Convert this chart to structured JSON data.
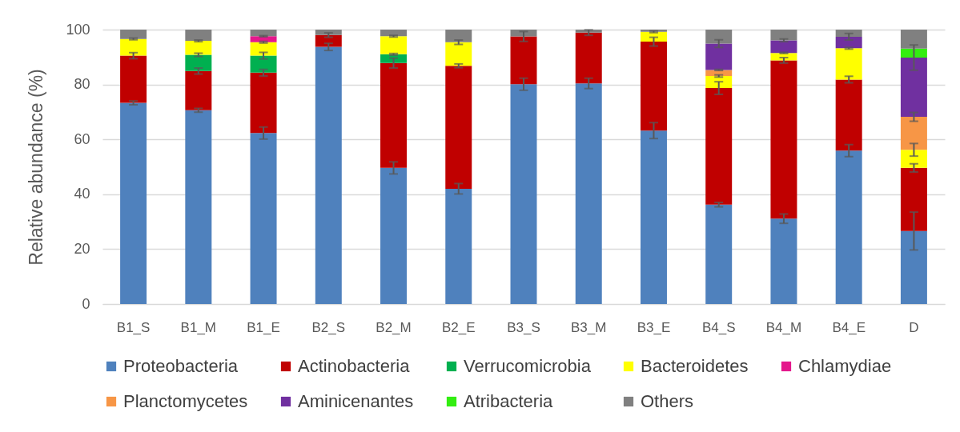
{
  "chart_data": {
    "type": "bar",
    "stacked": true,
    "ylabel": "Relative abundance (%)",
    "categories": [
      "B1_S",
      "B1_M",
      "B1_E",
      "B2_S",
      "B2_M",
      "B2_E",
      "B3_S",
      "B3_M",
      "B3_E",
      "B4_S",
      "B4_M",
      "B4_E",
      "D"
    ],
    "ylim": [
      0,
      100
    ],
    "yticks": [
      0,
      20,
      40,
      60,
      80,
      100
    ],
    "grid": "y",
    "legend": "bottom",
    "series": [
      {
        "name": "Proteobacteria",
        "color": "#4f81bd",
        "values": [
          73.3,
          70.6,
          62.3,
          93.7,
          49.6,
          42.0,
          80.1,
          80.4,
          63.2,
          36.2,
          31.1,
          55.9,
          26.6
        ],
        "errors": [
          0.7,
          0.7,
          2.2,
          1.3,
          2.2,
          1.9,
          2.2,
          1.9,
          2.9,
          0.8,
          1.7,
          2.2,
          6.9
        ]
      },
      {
        "name": "Actinobacteria",
        "color": "#c00000",
        "values": [
          17.2,
          14.3,
          22.0,
          4.3,
          38.2,
          44.8,
          17.4,
          18.5,
          32.4,
          42.5,
          57.7,
          25.9,
          23.0
        ],
        "errors": [
          1.1,
          1.1,
          1.2,
          0.8,
          1.8,
          0.7,
          1.8,
          1.0,
          1.6,
          2.3,
          1.0,
          1.2,
          1.5
        ]
      },
      {
        "name": "Verrucomicrobia",
        "color": "#00b050",
        "values": [
          null,
          5.9,
          6.2,
          null,
          3.2,
          null,
          null,
          null,
          null,
          null,
          null,
          null,
          null
        ],
        "errors": [
          null,
          0.6,
          1.2,
          null,
          0.3,
          null,
          null,
          null,
          null,
          null,
          null,
          null,
          null
        ]
      },
      {
        "name": "Bacteroidetes",
        "color": "#ffff00",
        "values": [
          6.1,
          5.1,
          4.9,
          null,
          6.6,
          8.6,
          null,
          null,
          3.6,
          4.4,
          2.7,
          11.4,
          6.6
        ],
        "errors": [
          0.3,
          0.3,
          0.3,
          null,
          0.3,
          0.8,
          null,
          null,
          0.3,
          0.4,
          0.2,
          0.3,
          2.3
        ]
      },
      {
        "name": "Chlamydiae",
        "color": "#e4188c",
        "values": [
          null,
          null,
          2.2,
          null,
          null,
          null,
          null,
          null,
          null,
          null,
          null,
          null,
          null
        ],
        "errors": [
          null,
          null,
          0.2,
          null,
          null,
          null,
          null,
          null,
          null,
          null,
          null,
          null,
          null
        ]
      },
      {
        "name": "Planctomycetes",
        "color": "#f79646",
        "values": [
          null,
          null,
          null,
          null,
          null,
          null,
          null,
          null,
          null,
          2.2,
          null,
          null,
          12.0
        ],
        "errors": [
          null,
          null,
          null,
          null,
          null,
          null,
          null,
          null,
          null,
          0.2,
          null,
          null,
          1.6
        ]
      },
      {
        "name": "Aminicenantes",
        "color": "#7030a0",
        "values": [
          null,
          null,
          null,
          null,
          null,
          null,
          null,
          null,
          null,
          9.6,
          4.6,
          4.2,
          21.6
        ],
        "errors": [
          null,
          null,
          null,
          null,
          null,
          null,
          null,
          null,
          null,
          1.4,
          0.5,
          1.2,
          4.6
        ]
      },
      {
        "name": "Atribacteria",
        "color": "#33ee11",
        "values": [
          null,
          null,
          null,
          null,
          null,
          null,
          null,
          null,
          null,
          null,
          null,
          null,
          3.3
        ]
      },
      {
        "name": "Others",
        "color": "#808080",
        "values": [
          3.4,
          4.1,
          2.4,
          2.0,
          2.4,
          4.6,
          2.5,
          1.1,
          0.8,
          5.1,
          3.9,
          2.6,
          6.9
        ]
      }
    ]
  }
}
